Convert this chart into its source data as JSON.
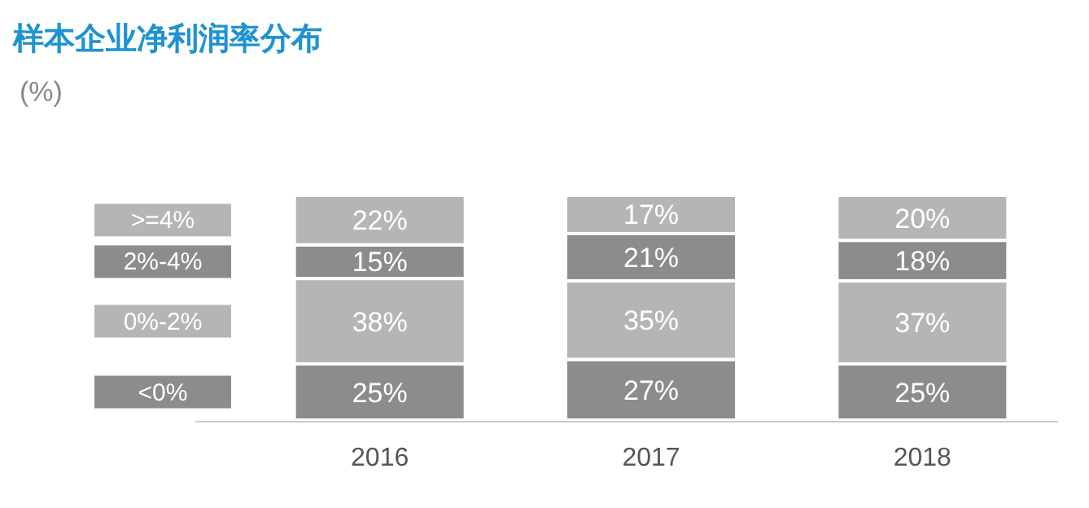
{
  "chart_data": {
    "type": "bar",
    "title": "样本企业净利润率分布",
    "subtitle": "(%)",
    "categories": [
      "2016",
      "2017",
      "2018"
    ],
    "stacked": true,
    "legend": "left",
    "series": [
      {
        "name": "<0%",
        "color": "#8c8c8c",
        "values": [
          25,
          27,
          25
        ],
        "value_labels": [
          "25%",
          "27%",
          "25%"
        ]
      },
      {
        "name": "0%-2%",
        "color": "#b5b5b5",
        "values": [
          38,
          35,
          37
        ],
        "value_labels": [
          "38%",
          "35%",
          "37%"
        ]
      },
      {
        "name": "2%-4%",
        "color": "#8c8c8c",
        "values": [
          15,
          21,
          18
        ],
        "value_labels": [
          "15%",
          "21%",
          "18%"
        ]
      },
      {
        "name": ">=4%",
        "color": "#b5b5b5",
        "values": [
          22,
          17,
          20
        ],
        "value_labels": [
          "22%",
          "17%",
          "20%"
        ]
      }
    ]
  }
}
